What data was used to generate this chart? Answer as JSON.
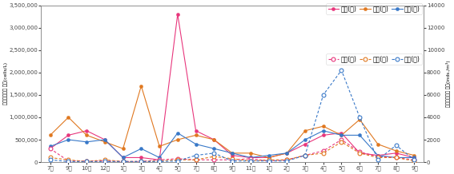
{
  "x_labels": [
    "7월",
    "9월",
    "10월",
    "12월",
    "1월",
    "3월",
    "4월",
    "5월",
    "7월",
    "8월",
    "9월",
    "11월",
    "1월",
    "2월",
    "3월",
    "4월",
    "5월",
    "6월",
    "7월",
    "8월",
    "9월"
  ],
  "tongyeong_sik": [
    300000,
    600000,
    700000,
    500000,
    100000,
    100000,
    50000,
    3300000,
    700000,
    500000,
    150000,
    100000,
    100000,
    200000,
    400000,
    600000,
    650000,
    200000,
    150000,
    200000,
    100000
  ],
  "jinhae_sik": [
    600000,
    1000000,
    600000,
    450000,
    300000,
    1700000,
    350000,
    500000,
    600000,
    500000,
    200000,
    200000,
    100000,
    200000,
    700000,
    800000,
    600000,
    950000,
    400000,
    250000,
    150000
  ],
  "geoje_sik": [
    350000,
    500000,
    450000,
    500000,
    100000,
    300000,
    100000,
    650000,
    400000,
    300000,
    200000,
    100000,
    150000,
    200000,
    500000,
    700000,
    600000,
    600000,
    150000,
    100000,
    100000
  ],
  "tongyeong_dong": [
    1200,
    100,
    100,
    100,
    50,
    50,
    200,
    300,
    200,
    200,
    200,
    300,
    100,
    200,
    600,
    1000,
    2000,
    900,
    500,
    400,
    200
  ],
  "jinhae_dong": [
    400,
    200,
    50,
    200,
    50,
    50,
    100,
    200,
    200,
    500,
    300,
    100,
    200,
    200,
    600,
    800,
    1800,
    800,
    400,
    400,
    100
  ],
  "geoje_dong": [
    200,
    50,
    50,
    50,
    50,
    50,
    50,
    100,
    600,
    800,
    100,
    100,
    100,
    100,
    600,
    6000,
    8200,
    4000,
    200,
    1500,
    200
  ],
  "colors": {
    "tongyeong": "#e8367c",
    "jinhae": "#e07820",
    "geoje": "#3878c8"
  },
  "ylim_left": [
    0,
    3500000
  ],
  "ylim_right": [
    0,
    14000
  ],
  "yticks_left": [
    0,
    500000,
    1000000,
    1500000,
    2000000,
    2500000,
    3000000,
    3500000
  ],
  "yticks_right": [
    0,
    2000,
    4000,
    6000,
    8000,
    10000,
    12000,
    14000
  ],
  "ylabel_left": "식물플랑크톤 밀도(cells/L)",
  "ylabel_right": "동물플랑크톤 밀도(inds./m³)",
  "legend_sik": [
    "통영(식)",
    "진해(식)",
    "거제(식)"
  ],
  "legend_dong": [
    "통영(동)",
    "진해(동)",
    "거제(동)"
  ]
}
